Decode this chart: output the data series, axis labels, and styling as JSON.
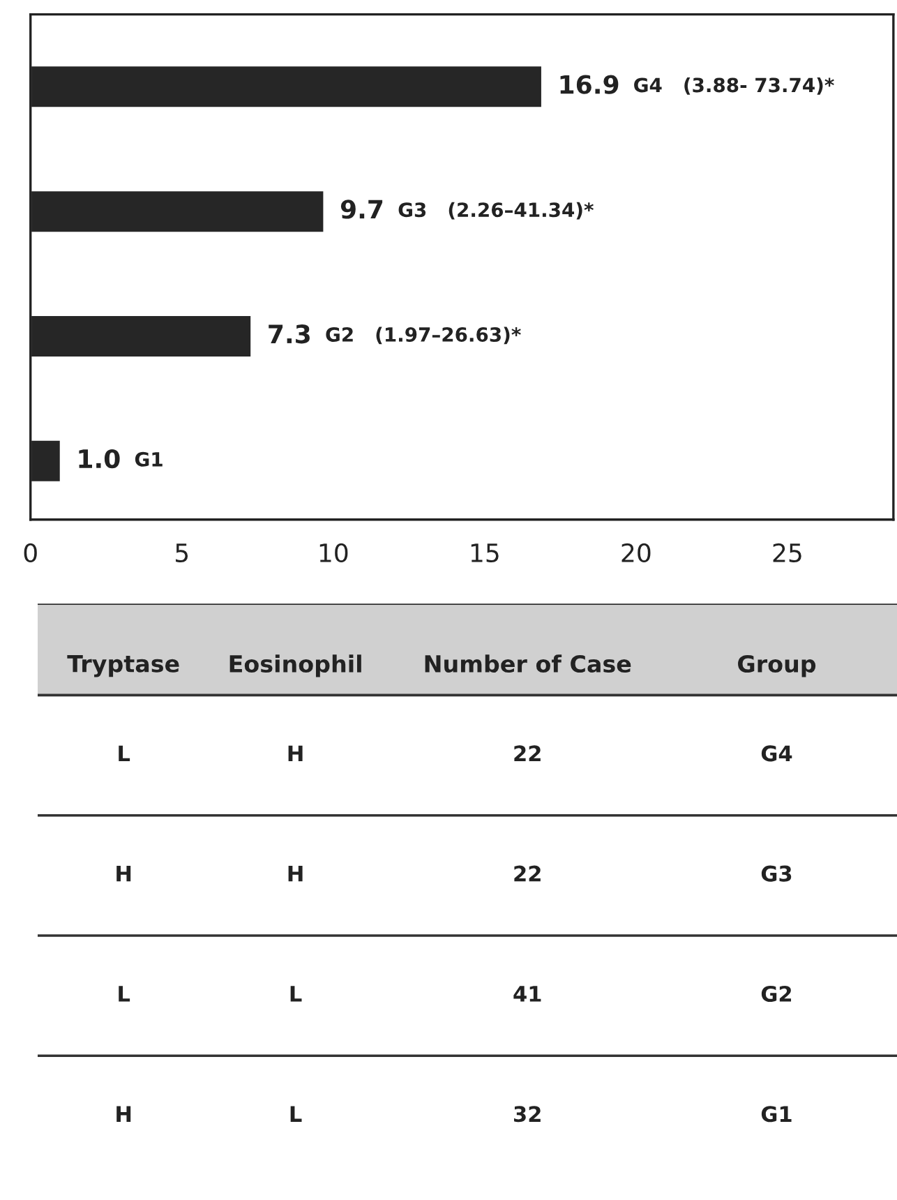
{
  "chart_data": [
    {
      "type": "bar",
      "orientation": "horizontal",
      "categories": [
        null,
        null,
        null,
        null
      ],
      "values": [
        16.9,
        9.7,
        7.3,
        1.0
      ],
      "color": "#262626",
      "value_labels": [
        "16.9",
        "9.7",
        "7.3",
        "1.0"
      ],
      "annotations": [
        "G4   (3.88- 73.74)*",
        "G3   (2.26–41.34)*",
        "G2   (1.97–26.63)*",
        "G1"
      ],
      "xlim": [
        0,
        28.5
      ],
      "xticks": [
        0,
        5,
        10,
        15,
        20,
        25
      ],
      "grid": false,
      "tick_labels": "x"
    },
    {
      "type": "other",
      "annotations": [
        "Tryptase",
        "Eosinophil",
        "Number of Case",
        "Group",
        "L",
        "H",
        "22",
        "G4",
        "H",
        "H",
        "22",
        "G3",
        "L",
        "L",
        "41",
        "G2",
        "H",
        "L",
        "32",
        "G1"
      ]
    }
  ]
}
